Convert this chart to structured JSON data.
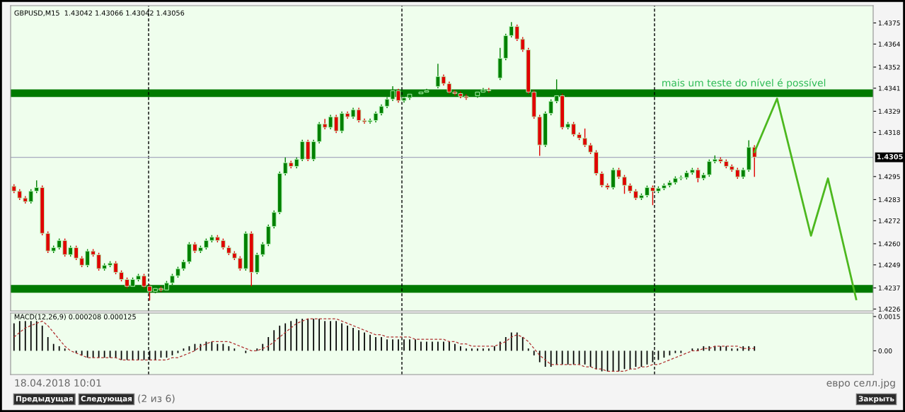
{
  "chart_data": [
    {
      "type": "candlestick",
      "title": "GBPUSD,M15  1.43042 1.43066 1.43042 1.43056",
      "categories": [
        null,
        null,
        null,
        null,
        null,
        null,
        null,
        null,
        null,
        null,
        null,
        null,
        null,
        null,
        null,
        null,
        null,
        null,
        null,
        null,
        null,
        null,
        null,
        null,
        null,
        null,
        null,
        null,
        null,
        null,
        null,
        null,
        null,
        null,
        null,
        null,
        null,
        null,
        null,
        null,
        null,
        null,
        null,
        null,
        null,
        null,
        null,
        null,
        null,
        null,
        null,
        null,
        null,
        null,
        null,
        null,
        null,
        null,
        null,
        null,
        null,
        null,
        null,
        null,
        null,
        null,
        null,
        null,
        null,
        null,
        null,
        null,
        null,
        null,
        null,
        null,
        null,
        null,
        null,
        null,
        null,
        null,
        null,
        null,
        null,
        null,
        null,
        null,
        null,
        null,
        null,
        null,
        null,
        null,
        null,
        null,
        null,
        null,
        null,
        null,
        null,
        null,
        null,
        null,
        null,
        null,
        null,
        null,
        null,
        null,
        null,
        null,
        null,
        null,
        null,
        null,
        null,
        null,
        null,
        null,
        null,
        null,
        null,
        null,
        null,
        null,
        null,
        null,
        null,
        null,
        null,
        null,
        null,
        null,
        null,
        null,
        null,
        null,
        null,
        null,
        null,
        null,
        null,
        null,
        null,
        null,
        null,
        null,
        null,
        null
      ],
      "ohlc": [
        [
          1.429,
          1.4291,
          1.42864,
          1.42874
        ],
        [
          1.42874,
          1.42884,
          1.42828,
          1.42838
        ],
        [
          1.42838,
          1.42848,
          1.42809,
          1.42819
        ],
        [
          1.42819,
          1.42884,
          1.42809,
          1.42874
        ],
        [
          1.42874,
          1.4293,
          1.42864,
          1.42893
        ],
        [
          1.42893,
          1.42903,
          1.42644,
          1.42654
        ],
        [
          1.42654,
          1.42664,
          1.42552,
          1.42562
        ],
        [
          1.42562,
          1.4259,
          1.42552,
          1.4258
        ],
        [
          1.4258,
          1.42627,
          1.4257,
          1.42617
        ],
        [
          1.42617,
          1.42627,
          1.42533,
          1.42543
        ],
        [
          1.42543,
          1.4259,
          1.42533,
          1.4258
        ],
        [
          1.4258,
          1.4259,
          1.42515,
          1.42525
        ],
        [
          1.42525,
          1.42535,
          1.42478,
          1.42488
        ],
        [
          1.42488,
          1.42572,
          1.42478,
          1.42562
        ],
        [
          1.42562,
          1.42572,
          1.42533,
          1.42543
        ],
        [
          1.42543,
          1.42553,
          1.4246,
          1.4247
        ],
        [
          1.4247,
          1.42498,
          1.4246,
          1.42488
        ],
        [
          1.42488,
          1.42509,
          1.42478,
          1.42499
        ],
        [
          1.42499,
          1.42509,
          1.42441,
          1.42451
        ],
        [
          1.42451,
          1.42461,
          1.42404,
          1.42414
        ],
        [
          1.42414,
          1.42424,
          1.42368,
          1.42378
        ],
        [
          1.42378,
          1.42424,
          1.42368,
          1.42414
        ],
        [
          1.42414,
          1.42443,
          1.42404,
          1.42433
        ],
        [
          1.42433,
          1.42443,
          1.42368,
          1.42378
        ],
        [
          1.42378,
          1.42388,
          1.42304,
          1.42352
        ],
        [
          1.42352,
          1.42377,
          1.42342,
          1.42367
        ],
        [
          1.42367,
          1.42377,
          1.42349,
          1.42359
        ],
        [
          1.42359,
          1.42406,
          1.42349,
          1.42396
        ],
        [
          1.42396,
          1.42443,
          1.42386,
          1.42433
        ],
        [
          1.42433,
          1.4248,
          1.42423,
          1.4247
        ],
        [
          1.4247,
          1.42516,
          1.4246,
          1.42506
        ],
        [
          1.42506,
          1.42608,
          1.42496,
          1.42598
        ],
        [
          1.42598,
          1.42608,
          1.42552,
          1.42562
        ],
        [
          1.42562,
          1.4259,
          1.42552,
          1.4258
        ],
        [
          1.4258,
          1.42627,
          1.4257,
          1.42617
        ],
        [
          1.42617,
          1.42645,
          1.42607,
          1.42635
        ],
        [
          1.42635,
          1.42645,
          1.42607,
          1.42617
        ],
        [
          1.42617,
          1.42627,
          1.4257,
          1.4258
        ],
        [
          1.4258,
          1.4259,
          1.42541,
          1.42551
        ],
        [
          1.42551,
          1.42561,
          1.42515,
          1.42525
        ],
        [
          1.42525,
          1.42535,
          1.4246,
          1.4247
        ],
        [
          1.4247,
          1.42664,
          1.4246,
          1.42654
        ],
        [
          1.42654,
          1.42664,
          1.42378,
          1.42451
        ],
        [
          1.42451,
          1.42553,
          1.42441,
          1.42543
        ],
        [
          1.42543,
          1.42608,
          1.42533,
          1.42598
        ],
        [
          1.42598,
          1.427,
          1.42588,
          1.4269
        ],
        [
          1.4269,
          1.42774,
          1.4268,
          1.42764
        ],
        [
          1.42764,
          1.42976,
          1.42754,
          1.42966
        ],
        [
          1.42966,
          1.4305,
          1.42956,
          1.43022
        ],
        [
          1.43022,
          1.43032,
          1.42993,
          1.43003
        ],
        [
          1.43003,
          1.4305,
          1.42993,
          1.4304
        ],
        [
          1.4304,
          1.43142,
          1.4303,
          1.43132
        ],
        [
          1.43132,
          1.43142,
          1.4303,
          1.4304
        ],
        [
          1.4304,
          1.43142,
          1.4303,
          1.43132
        ],
        [
          1.43132,
          1.43234,
          1.43122,
          1.43224
        ],
        [
          1.43224,
          1.4325,
          1.43196,
          1.43206
        ],
        [
          1.43206,
          1.43271,
          1.43196,
          1.43261
        ],
        [
          1.43261,
          1.43271,
          1.43177,
          1.43187
        ],
        [
          1.43187,
          1.43289,
          1.43177,
          1.43279
        ],
        [
          1.43279,
          1.43289,
          1.43251,
          1.43261
        ],
        [
          1.43261,
          1.43308,
          1.43251,
          1.43298
        ],
        [
          1.43298,
          1.43308,
          1.43232,
          1.43242
        ],
        [
          1.43242,
          1.43252,
          1.43225,
          1.43235
        ],
        [
          1.43235,
          1.43252,
          1.43225,
          1.43242
        ],
        [
          1.43242,
          1.43289,
          1.43232,
          1.43279
        ],
        [
          1.43279,
          1.43326,
          1.43269,
          1.43316
        ],
        [
          1.43316,
          1.43363,
          1.43306,
          1.43353
        ],
        [
          1.43353,
          1.4342,
          1.43343,
          1.43397
        ],
        [
          1.43397,
          1.43407,
          1.43335,
          1.43345
        ],
        [
          1.43345,
          1.4337,
          1.43335,
          1.4336
        ],
        [
          1.4336,
          1.43389,
          1.4335,
          1.43379
        ],
        null,
        [
          1.43381,
          1.434,
          1.43371,
          1.4339
        ],
        [
          1.4339,
          1.43407,
          1.4338,
          1.43397
        ],
        null,
        [
          1.43419,
          1.43537,
          1.43409,
          1.43471
        ],
        [
          1.43471,
          1.43481,
          1.43424,
          1.43434
        ],
        [
          1.43434,
          1.43444,
          1.4338,
          1.4339
        ],
        [
          1.4339,
          1.434,
          1.43372,
          1.43382
        ],
        [
          1.43382,
          1.43392,
          1.43358,
          1.43368
        ],
        [
          1.43368,
          1.43378,
          1.4335,
          1.4336
        ],
        null,
        [
          1.43371,
          1.434,
          1.43361,
          1.4339
        ],
        [
          1.4339,
          1.43411,
          1.4338,
          1.43401
        ],
        [
          1.43401,
          1.43411,
          1.43387,
          1.43397
        ],
        null,
        [
          1.43463,
          1.4362,
          1.43453,
          1.43566
        ],
        [
          1.43566,
          1.43694,
          1.43556,
          1.43684
        ],
        [
          1.43684,
          1.43754,
          1.43674,
          1.43732
        ],
        [
          1.43732,
          1.43742,
          1.43656,
          1.43666
        ],
        [
          1.43666,
          1.43676,
          1.436,
          1.4361
        ],
        [
          1.4361,
          1.4362,
          1.4338,
          1.4339
        ],
        [
          1.4339,
          1.434,
          1.43251,
          1.43261
        ],
        [
          1.43261,
          1.43271,
          1.43058,
          1.43114
        ],
        [
          1.43114,
          1.43289,
          1.43104,
          1.43279
        ],
        [
          1.43279,
          1.43352,
          1.43269,
          1.43342
        ],
        [
          1.43342,
          1.43456,
          1.43332,
          1.43371
        ],
        [
          1.43371,
          1.43381,
          1.43196,
          1.43206
        ],
        [
          1.43206,
          1.43234,
          1.43196,
          1.43224
        ],
        [
          1.43224,
          1.43234,
          1.43159,
          1.43169
        ],
        [
          1.43169,
          1.43179,
          1.4314,
          1.4315
        ],
        [
          1.4315,
          1.432,
          1.43104,
          1.43114
        ],
        [
          1.43114,
          1.43124,
          1.43067,
          1.43077
        ],
        [
          1.43077,
          1.43087,
          1.42956,
          1.42966
        ],
        [
          1.42966,
          1.42976,
          1.42894,
          1.42904
        ],
        [
          1.42904,
          1.42914,
          1.42883,
          1.42893
        ],
        [
          1.42893,
          1.42995,
          1.42883,
          1.42985
        ],
        [
          1.42985,
          1.42995,
          1.42938,
          1.42948
        ],
        [
          1.42948,
          1.42958,
          1.4286,
          1.42904
        ],
        [
          1.42904,
          1.42914,
          1.42864,
          1.42874
        ],
        [
          1.42874,
          1.42884,
          1.42828,
          1.42838
        ],
        [
          1.42838,
          1.42862,
          1.42828,
          1.42852
        ],
        [
          1.42852,
          1.42903,
          1.42842,
          1.42893
        ],
        [
          1.42893,
          1.42903,
          1.42801,
          1.42874
        ],
        [
          1.42874,
          1.42899,
          1.42864,
          1.42889
        ],
        [
          1.42889,
          1.42914,
          1.42879,
          1.42904
        ],
        [
          1.42904,
          1.42929,
          1.42894,
          1.42919
        ],
        [
          1.42919,
          1.42951,
          1.42909,
          1.42941
        ],
        [
          1.42941,
          1.42955,
          1.42931,
          1.42945
        ],
        [
          1.42945,
          1.4298,
          1.42935,
          1.4297
        ],
        [
          1.4297,
          1.42995,
          1.4296,
          1.42985
        ],
        [
          1.42985,
          1.42995,
          1.4292,
          1.42941
        ],
        [
          1.42941,
          1.42969,
          1.42931,
          1.42959
        ],
        [
          1.42959,
          1.43039,
          1.42949,
          1.43029
        ],
        [
          1.43029,
          1.4306,
          1.43019,
          1.4304
        ],
        [
          1.4304,
          1.4305,
          1.43019,
          1.43029
        ],
        [
          1.43029,
          1.43039,
          1.42993,
          1.43003
        ],
        [
          1.43003,
          1.43013,
          1.42975,
          1.42985
        ],
        [
          1.42985,
          1.42995,
          1.42938,
          1.42948
        ],
        [
          1.42948,
          1.42995,
          1.42938,
          1.42985
        ],
        [
          1.42985,
          1.43139,
          1.42975,
          1.43103
        ],
        [
          1.43103,
          1.43113,
          1.42948,
          1.43051
        ],
        null,
        null,
        null,
        null,
        null,
        null,
        null,
        null,
        null,
        null,
        null,
        null,
        null,
        null,
        null,
        null,
        null,
        null
      ],
      "series": [
        {
          "type": "line",
          "color": "#4cb81e",
          "values": [
            null,
            null,
            null,
            null,
            null,
            null,
            null,
            null,
            null,
            null,
            null,
            null,
            null,
            null,
            null,
            null,
            null,
            null,
            null,
            null,
            null,
            null,
            null,
            null,
            null,
            null,
            null,
            null,
            null,
            null,
            null,
            null,
            null,
            null,
            null,
            null,
            null,
            null,
            null,
            null,
            null,
            null,
            null,
            null,
            null,
            null,
            null,
            null,
            null,
            null,
            null,
            null,
            null,
            null,
            null,
            null,
            null,
            null,
            null,
            null,
            null,
            null,
            null,
            null,
            null,
            null,
            null,
            null,
            null,
            null,
            null,
            null,
            null,
            null,
            null,
            null,
            null,
            null,
            null,
            null,
            null,
            null,
            null,
            null,
            null,
            null,
            null,
            null,
            null,
            null,
            null,
            null,
            null,
            null,
            null,
            null,
            null,
            null,
            null,
            null,
            null,
            null,
            null,
            null,
            null,
            null,
            null,
            null,
            null,
            null,
            null,
            null,
            null,
            null,
            null,
            null,
            null,
            null,
            null,
            null,
            null,
            null,
            null,
            null,
            null,
            null,
            null,
            null,
            null,
            null,
            null,
            1.43077,
            null,
            null,
            null,
            1.43356,
            null,
            null,
            null,
            null,
            null,
            1.42642,
            null,
            null,
            1.4294,
            null,
            null,
            null,
            null,
            1.42311
          ]
        }
      ],
      "ylim": [
        1.4225,
        1.4384
      ],
      "yticks": [
        1.4375,
        1.4364,
        1.4352,
        1.4341,
        1.4329,
        1.4318,
        1.4295,
        1.4283,
        1.4272,
        {
          "value": 1.426,
          "label": "1.4260"
        },
        1.4249,
        1.4237,
        1.4226
      ],
      "bands": [
        {
          "axis": "y",
          "from": 1.43364,
          "to": 1.43404,
          "color": "#007a00"
        },
        {
          "axis": "y",
          "from": 1.42345,
          "to": 1.42385,
          "color": "#007a00"
        }
      ],
      "ref_lines": [
        {
          "axis": "y",
          "value": 1.4305,
          "label": "1.4305",
          "color": "#a8aac0"
        }
      ],
      "annotations": [
        "mais um teste do nível é possível",
        "18.04.2018 10:01",
        "Предыдущая",
        "Следующая",
        "(2 из 6)",
        "евро селл.jpg",
        "Закрыть"
      ]
    },
    {
      "type": "bar",
      "title": "MACD(12,26,9) 0.000208 0.000125",
      "categories": [
        null,
        null,
        null,
        null,
        null,
        null,
        null,
        null,
        null,
        null,
        null,
        null,
        null,
        null,
        null,
        null,
        null,
        null,
        null,
        null,
        null,
        null,
        null,
        null,
        null,
        null,
        null,
        null,
        null,
        null,
        null,
        null,
        null,
        null,
        null,
        null,
        null,
        null,
        null,
        null,
        null,
        null,
        null,
        null,
        null,
        null,
        null,
        null,
        null,
        null,
        null,
        null,
        null,
        null,
        null,
        null,
        null,
        null,
        null,
        null,
        null,
        null,
        null,
        null,
        null,
        null,
        null,
        null,
        null,
        null,
        null,
        null,
        null,
        null,
        null,
        null,
        null,
        null,
        null,
        null,
        null,
        null,
        null,
        null,
        null,
        null,
        null,
        null,
        null,
        null,
        null,
        null,
        null,
        null,
        null,
        null,
        null,
        null,
        null,
        null,
        null,
        null,
        null,
        null,
        null,
        null,
        null,
        null,
        null,
        null,
        null,
        null,
        null,
        null,
        null,
        null,
        null,
        null,
        null,
        null,
        null,
        null,
        null,
        null,
        null,
        null,
        null,
        null,
        null,
        null,
        null,
        null,
        null,
        null,
        null,
        null,
        null,
        null,
        null,
        null,
        null,
        null,
        null,
        null,
        null,
        null,
        null,
        null,
        null,
        null
      ],
      "series": [
        {
          "type": "bar",
          "color": "#000000",
          "values": [
            0.0012,
            0.0013,
            0.0013,
            0.0013,
            0.0013,
            0.0011,
            0.0006,
            0.0003,
            0.0002,
            0.0001,
            0.0,
            -0.0001,
            -0.0002,
            -0.0003,
            -0.0003,
            -0.0003,
            -0.0003,
            -0.0003,
            -0.0003,
            -0.0004,
            -0.0004,
            -0.0004,
            -0.0004,
            -0.0004,
            -0.0004,
            -0.0004,
            -0.0003,
            -0.0003,
            -0.0002,
            -0.0001,
            0.0001,
            0.0002,
            0.0003,
            0.0003,
            0.0004,
            0.0004,
            0.0003,
            0.0003,
            0.0002,
            0.0001,
            0.0,
            -0.0001,
            0.0,
            0.0001,
            0.0003,
            0.0006,
            0.0009,
            0.0011,
            0.0012,
            0.0013,
            0.0014,
            0.0014,
            0.0014,
            0.0014,
            0.0014,
            0.0013,
            0.0013,
            0.0013,
            0.0012,
            0.0011,
            0.001,
            0.0009,
            0.0008,
            0.0007,
            0.0006,
            0.0006,
            0.0005,
            0.0005,
            0.0005,
            0.0005,
            0.0005,
            0.0005,
            0.0004,
            0.0004,
            0.0004,
            0.0004,
            0.0004,
            0.0004,
            0.0003,
            0.0002,
            0.0001,
            0.0001,
            0.0001,
            0.0001,
            0.0001,
            0.0002,
            0.0004,
            0.0006,
            0.0008,
            0.0008,
            0.0006,
            0.0001,
            -0.0002,
            -0.0005,
            -0.0007,
            -0.0007,
            -0.0006,
            -0.0006,
            -0.0006,
            -0.0006,
            -0.0006,
            -0.0006,
            -0.0007,
            -0.0008,
            -0.0009,
            -0.0009,
            -0.0009,
            -0.0009,
            -0.0008,
            -0.0008,
            -0.0007,
            -0.0007,
            -0.0006,
            -0.0005,
            -0.0004,
            -0.0003,
            -0.0002,
            -0.0001,
            -0.0001,
            0.0,
            0.0001,
            0.0001,
            0.0002,
            0.0002,
            0.0002,
            0.0002,
            0.0002,
            0.0001,
            0.0001,
            0.0002,
            0.0002,
            0.0002,
            null,
            null,
            null,
            null,
            null,
            null,
            null,
            null,
            null,
            null,
            null,
            null,
            null,
            null,
            null,
            null,
            null,
            null
          ]
        },
        {
          "type": "line",
          "color": "#b03030",
          "line_style": "dashed",
          "values": [
            0.0006,
            0.0008,
            0.001,
            0.0011,
            0.0012,
            0.0013,
            0.0011,
            0.0008,
            0.0005,
            0.0002,
            0.0,
            -0.0001,
            -0.0002,
            -0.0003,
            -0.0003,
            -0.0003,
            -0.0003,
            -0.0003,
            -0.0003,
            -0.0004,
            -0.0004,
            -0.0004,
            -0.0004,
            -0.0004,
            -0.0004,
            -0.0004,
            -0.0004,
            -0.0004,
            -0.0003,
            -0.0003,
            -0.0002,
            -0.0001,
            0.0,
            0.0002,
            0.0003,
            0.0004,
            0.0004,
            0.0004,
            0.0004,
            0.0003,
            0.0002,
            0.0001,
            0.0,
            0.0,
            0.0001,
            0.0002,
            0.0004,
            0.0006,
            0.0008,
            0.001,
            0.0012,
            0.0013,
            0.0014,
            0.0014,
            0.0014,
            0.0014,
            0.0014,
            0.0014,
            0.0013,
            0.0012,
            0.0011,
            0.001,
            0.0009,
            0.0008,
            0.0007,
            0.0007,
            0.0006,
            0.0006,
            0.0006,
            0.0006,
            0.0006,
            0.0005,
            0.0005,
            0.0005,
            0.0005,
            0.0005,
            0.0005,
            0.0004,
            0.0004,
            0.0003,
            0.0003,
            0.0002,
            0.0002,
            0.0002,
            0.0002,
            0.0002,
            0.0003,
            0.0004,
            0.0006,
            0.0007,
            0.0006,
            0.0004,
            0.0001,
            -0.0002,
            -0.0004,
            -0.0006,
            -0.0006,
            -0.0006,
            -0.0006,
            -0.0006,
            -0.0006,
            -0.0007,
            -0.0007,
            -0.0008,
            -0.0008,
            -0.0009,
            -0.0009,
            -0.0009,
            -0.0009,
            -0.0008,
            -0.0008,
            -0.0007,
            -0.0007,
            -0.0006,
            -0.0006,
            -0.0005,
            -0.0004,
            -0.0003,
            -0.0002,
            -0.0001,
            0.0,
            0.0,
            0.0001,
            0.0001,
            0.0002,
            0.0002,
            0.0002,
            0.0002,
            0.0002,
            0.0001,
            0.0001,
            0.0001,
            null,
            null,
            null,
            null,
            null,
            null,
            null,
            null,
            null,
            null,
            null,
            null,
            null,
            null,
            null,
            null,
            null,
            null
          ]
        }
      ],
      "ylim": [
        -0.00104,
        0.00165
      ],
      "yticks": [
        0.0015,
        {
          "value": 0,
          "label": "0.00"
        }
      ]
    }
  ]
}
